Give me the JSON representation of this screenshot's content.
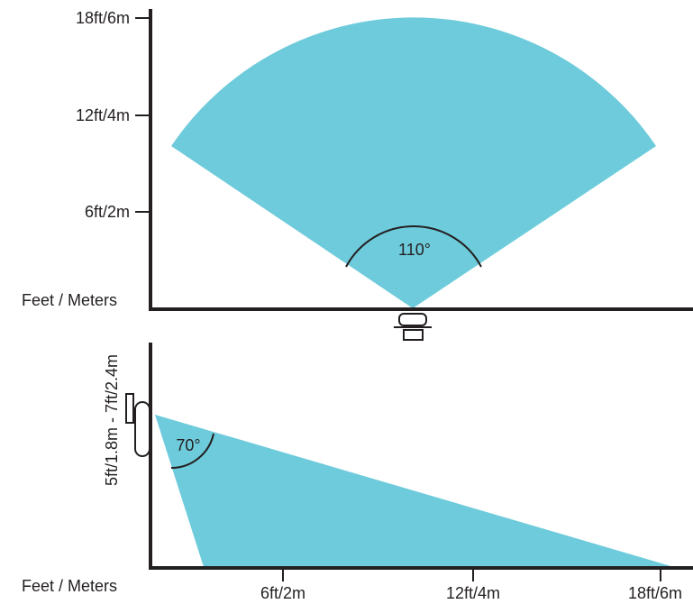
{
  "colors": {
    "coverage": "#6ECBDB",
    "line": "#231f20",
    "background": "#ffffff"
  },
  "top_view": {
    "axis_title": "Feet / Meters",
    "y_ticks": [
      "18ft/6m",
      "12ft/4m",
      "6ft/2m"
    ],
    "angle_label": "110°"
  },
  "side_view": {
    "axis_title": "Feet / Meters",
    "y_label": "5ft/1.8m - 7ft/2.4m",
    "x_ticks": [
      "6ft/2m",
      "12ft/4m",
      "18ft/6m"
    ],
    "angle_label": "70°"
  },
  "icons": {
    "top_sensor": "motion-sensor-top-icon",
    "side_sensor": "motion-sensor-side-icon"
  }
}
